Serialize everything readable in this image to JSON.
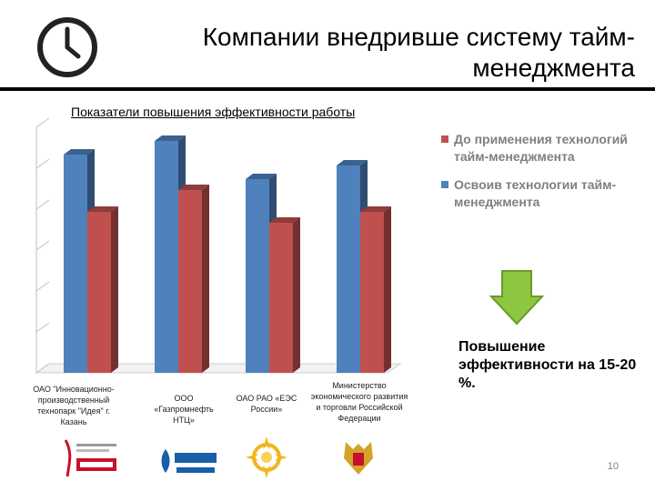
{
  "header": {
    "title_line1": "Компании внедривше систему тайм-",
    "title_line2": "менеджмента",
    "clock_icon": "clock-icon"
  },
  "colors": {
    "series_after": "#4f81bd",
    "series_before": "#c0504d",
    "arrow": "#8dc63f",
    "legend_text": "#7f7f7f"
  },
  "chart_data": {
    "type": "bar",
    "title": "Показатели повышения эффективности работы",
    "categories": [
      "ОАО \"Инновационно-производственный технопарк \"Идея\" г. Казань",
      "ООО «Газпромнефть НТЦ»",
      "ОАО РАО «ЕЭС России»",
      "Министерство экономического развития и торговли Российской Федерации"
    ],
    "series": [
      {
        "name": "Освоив технологии тайм-менеджмента",
        "values": [
          80,
          85,
          71,
          76
        ]
      },
      {
        "name": "До применения технологий тайм-менеджмента",
        "values": [
          59,
          67,
          55,
          59
        ]
      }
    ],
    "ylim": [
      0,
      90
    ],
    "grid": true,
    "legend_position": "right",
    "style": "3d-columns"
  },
  "legend": {
    "items": [
      {
        "label": "До применения технологий тайм-менеджмента"
      },
      {
        "label": "Освоив технологии тайм-менеджмента"
      }
    ]
  },
  "result": {
    "text": "Повышение эффективности на 15-20 %.",
    "arrow_icon": "arrow-down-icon"
  },
  "logos": [
    {
      "name": "idea-logo"
    },
    {
      "name": "gazprom-logo"
    },
    {
      "name": "rao-ees-logo"
    },
    {
      "name": "russian-emblem-logo"
    }
  ],
  "page_number": "10"
}
